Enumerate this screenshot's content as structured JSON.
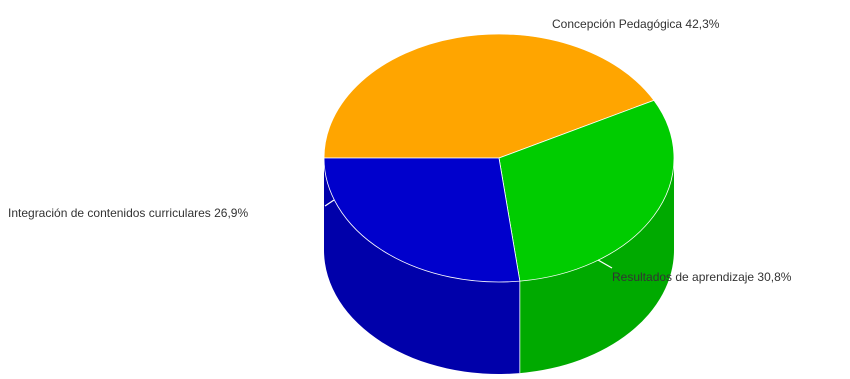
{
  "chart_data": {
    "type": "pie",
    "style": "3d",
    "title": "",
    "slices": [
      {
        "name": "Concepción Pedagógica",
        "value": 42.3,
        "display": "42,3%",
        "color": "#FFA500",
        "side_color": "#D98C00"
      },
      {
        "name": "Resultados de aprendizaje",
        "value": 30.8,
        "display": "30,8%",
        "color": "#00CC00",
        "side_color": "#00AA00"
      },
      {
        "name": "Integración de contenidos curriculares",
        "value": 26.9,
        "display": "26,9%",
        "color": "#0000CC",
        "side_color": "#0000AA"
      }
    ]
  }
}
